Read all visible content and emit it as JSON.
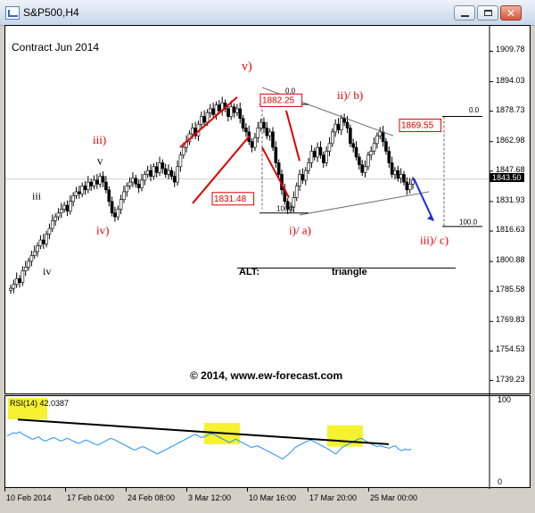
{
  "window": {
    "title": "S&P500,H4",
    "controls": [
      "minimize",
      "maximize",
      "close"
    ],
    "close_glyph": "✕"
  },
  "chart_data": [
    {
      "type": "candlestick",
      "title": "Contract Jun 2014",
      "watermark": "© 2014, www.ew-forecast.com",
      "ylim": [
        1733,
        1922
      ],
      "yticks": [
        "1909.78",
        "1894.03",
        "1878.73",
        "1862.98",
        "1847.68",
        "1831.93",
        "1816.63",
        "1800.88",
        "1785.58",
        "1769.83",
        "1754.53",
        "1739.23"
      ],
      "current_price": "1843.50",
      "xticks": [
        "10 Feb 2014",
        "17 Feb 04:00",
        "24 Feb 08:00",
        "3 Mar 12:00",
        "10 Mar 16:00",
        "17 Mar 20:00",
        "25 Mar 00:00"
      ],
      "series": [
        {
          "values": [
            1787,
            1789,
            1792,
            1790,
            1796,
            1798,
            1801,
            1804,
            1806,
            1809,
            1812,
            1810,
            1815,
            1818,
            1822,
            1824,
            1826,
            1828,
            1830,
            1827,
            1832,
            1835,
            1837,
            1836,
            1840,
            1838,
            1842,
            1840,
            1843,
            1841,
            1845,
            1842,
            1838,
            1832,
            1826,
            1824,
            1828,
            1833,
            1837,
            1840,
            1842,
            1844,
            1841,
            1839,
            1843,
            1846,
            1848,
            1845,
            1850,
            1847,
            1852,
            1849,
            1846,
            1848,
            1845,
            1842,
            1850,
            1856,
            1860,
            1863,
            1867,
            1870,
            1866,
            1872,
            1876,
            1873,
            1878,
            1880,
            1877,
            1882,
            1879,
            1883,
            1880,
            1876,
            1881,
            1878,
            1880,
            1875,
            1870,
            1868,
            1863,
            1860,
            1865,
            1870,
            1873,
            1870,
            1866,
            1868,
            1860,
            1852,
            1846,
            1838,
            1832,
            1828,
            1829,
            1834,
            1840,
            1846,
            1843,
            1848,
            1852,
            1858,
            1855,
            1860,
            1856,
            1852,
            1858,
            1862,
            1868,
            1872,
            1869,
            1875,
            1873,
            1870,
            1862,
            1860,
            1855,
            1851,
            1847,
            1850,
            1856,
            1858,
            1862,
            1866,
            1868,
            1863,
            1858,
            1852,
            1846,
            1848,
            1844,
            1846,
            1842,
            1838,
            1841,
            1843
          ]
        }
      ],
      "annotations": [
        {
          "text": "iv",
          "color": "#000000"
        },
        {
          "text": "iii",
          "color": "#000000"
        },
        {
          "text": "iv)",
          "color": "#e00000"
        },
        {
          "text": "iii)",
          "color": "#e00000"
        },
        {
          "text": "v",
          "color": "#000000"
        },
        {
          "text": "v)",
          "color": "#e00000"
        },
        {
          "text": "1831.48",
          "color": "#e00000",
          "boxed": true
        },
        {
          "text": "1882.25",
          "color": "#e00000",
          "boxed": true
        },
        {
          "text": "0.0",
          "color": "#000000"
        },
        {
          "text": "100.0",
          "color": "#000000"
        },
        {
          "text": "i)/ a)",
          "color": "#e00000"
        },
        {
          "text": "ii)/ b)",
          "color": "#e00000"
        },
        {
          "text": "1869.55",
          "color": "#e00000",
          "boxed": true
        },
        {
          "text": "0.0",
          "color": "#000000"
        },
        {
          "text": "100.0",
          "color": "#000000"
        },
        {
          "text": "iii)/ c)",
          "color": "#e00000"
        },
        {
          "text": "ALT:",
          "color": "#000000"
        },
        {
          "text": "triangle",
          "color": "#000000"
        }
      ]
    },
    {
      "type": "line",
      "label": "RSI(14)",
      "last_value": "42.0387",
      "ylim": [
        0,
        100
      ],
      "yticks": [
        "100",
        "0"
      ],
      "series": [
        {
          "color": "#1e90ff",
          "values": [
            58,
            60,
            62,
            61,
            63,
            60,
            58,
            56,
            54,
            55,
            57,
            54,
            52,
            53,
            55,
            56,
            54,
            52,
            53,
            55,
            54,
            52,
            50,
            49,
            51,
            53,
            52,
            50,
            48,
            47,
            49,
            51,
            53,
            55,
            54,
            52,
            50,
            48,
            46,
            44,
            42,
            41,
            43,
            45,
            44,
            42,
            40,
            38,
            36,
            38,
            40,
            42,
            44,
            46,
            48,
            50,
            52,
            54,
            56,
            58,
            60,
            58,
            56,
            57,
            59,
            61,
            60,
            58,
            56,
            54,
            52,
            50,
            52,
            54,
            52,
            50,
            48,
            46,
            44,
            45,
            46,
            44,
            42,
            40,
            38,
            36,
            34,
            32,
            30,
            33,
            36,
            40,
            44,
            46,
            48,
            50,
            52,
            53,
            51,
            49,
            47,
            45,
            43,
            41,
            38,
            36,
            40,
            44,
            46,
            48,
            50,
            52,
            54,
            55,
            53,
            51,
            49,
            47,
            45,
            46,
            45,
            44,
            43,
            45,
            46,
            42,
            40,
            42,
            41,
            42
          ]
        }
      ]
    }
  ]
}
